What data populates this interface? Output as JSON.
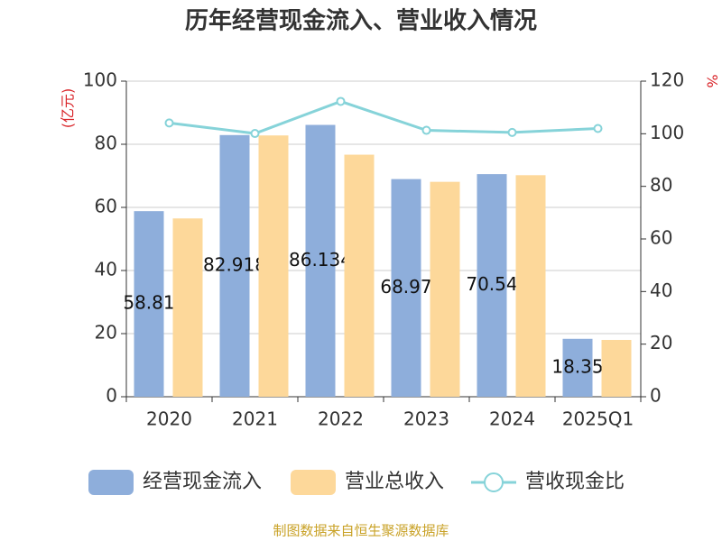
{
  "chart_data": {
    "type": "bar_line",
    "title": "历年经营现金流入、营业收入情况",
    "y_label": "(亿元)",
    "y2_label": "%",
    "categories": [
      "2020",
      "2021",
      "2022",
      "2023",
      "2024",
      "2025Q1"
    ],
    "series": [
      {
        "name": "经营现金流入",
        "type": "bar",
        "color": "#8eaedb",
        "values": [
          58.81,
          82.918,
          86.134,
          68.97,
          70.54,
          18.35
        ],
        "value_labels": [
          "58.81",
          "82.918",
          "86.134",
          "68.97",
          "70.54",
          "18.35"
        ]
      },
      {
        "name": "营业总收入",
        "type": "bar",
        "color": "#fdd89a",
        "values": [
          56.5,
          82.8,
          76.7,
          68.1,
          70.2,
          18.0
        ]
      },
      {
        "name": "营收现金比",
        "type": "line",
        "axis": "y2",
        "color": "#86d3d9",
        "values": [
          104.1,
          100.1,
          112.3,
          101.3,
          100.5,
          102.0
        ]
      }
    ],
    "ylim": [
      0,
      100
    ],
    "yticks": [
      0,
      20,
      40,
      60,
      80,
      100
    ],
    "y2lim": [
      0,
      120
    ],
    "y2ticks": [
      0,
      20,
      40,
      60,
      80,
      100,
      120
    ],
    "grid": true,
    "footer": "制图数据来自恒生聚源数据库"
  }
}
